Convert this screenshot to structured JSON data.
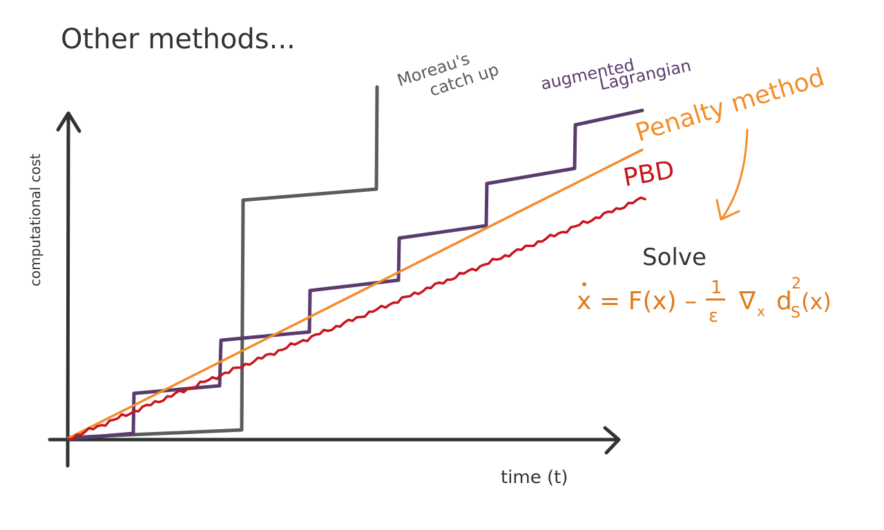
{
  "title": "Other methods...",
  "axes": {
    "ylabel": "computational cost",
    "xlabel": "time (t)"
  },
  "labels": {
    "moreau": [
      "Moreau's",
      "catch up"
    ],
    "augmented": [
      "augmented",
      "Lagrangian"
    ],
    "penalty": "Penalty method",
    "pbd": "PBD"
  },
  "equation": {
    "solve": "Solve",
    "lhs": "x",
    "rhs_main": "= F(x) –",
    "frac_num": "1",
    "frac_den": "ε",
    "nabla": "∇",
    "nabla_sub": "x",
    "d": "d",
    "d_sub": "S",
    "d_sup": "2",
    "d_arg": "(x)"
  },
  "colors": {
    "axes": "#2f3432",
    "moreau": "#595c59",
    "augmented": "#5b3a6e",
    "penalty": "#f28d2a",
    "pbd": "#c8141c",
    "equation": "#e07a1e",
    "text": "#2f3432"
  }
}
